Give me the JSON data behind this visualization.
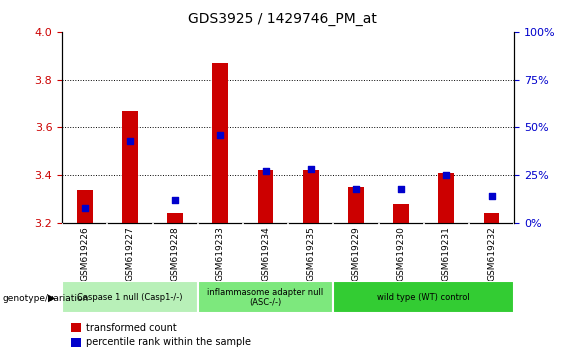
{
  "title": "GDS3925 / 1429746_PM_at",
  "samples": [
    "GSM619226",
    "GSM619227",
    "GSM619228",
    "GSM619233",
    "GSM619234",
    "GSM619235",
    "GSM619229",
    "GSM619230",
    "GSM619231",
    "GSM619232"
  ],
  "red_values": [
    3.34,
    3.67,
    3.24,
    3.87,
    3.42,
    3.42,
    3.35,
    3.28,
    3.41,
    3.24
  ],
  "blue_pct": [
    8,
    43,
    12,
    46,
    27,
    28,
    18,
    18,
    25,
    14
  ],
  "ylim_left": [
    3.2,
    4.0
  ],
  "ylim_right": [
    0,
    100
  ],
  "yticks_left": [
    3.2,
    3.4,
    3.6,
    3.8,
    4.0
  ],
  "yticks_right": [
    0,
    25,
    50,
    75,
    100
  ],
  "groups": [
    {
      "label": "Caspase 1 null (Casp1-/-)",
      "indices": [
        0,
        1,
        2
      ],
      "color": "#b8f0b8"
    },
    {
      "label": "inflammasome adapter null\n(ASC-/-)",
      "indices": [
        3,
        4,
        5
      ],
      "color": "#7de87d"
    },
    {
      "label": "wild type (WT) control",
      "indices": [
        6,
        7,
        8,
        9
      ],
      "color": "#33cc33"
    }
  ],
  "bar_width": 0.35,
  "red_color": "#cc0000",
  "blue_color": "#0000cc",
  "axis_left_color": "#cc0000",
  "axis_right_color": "#0000cc",
  "legend_red": "transformed count",
  "legend_blue": "percentile rank within the sample",
  "xlabel_group": "genotype/variation",
  "tick_area_color": "#cccccc"
}
